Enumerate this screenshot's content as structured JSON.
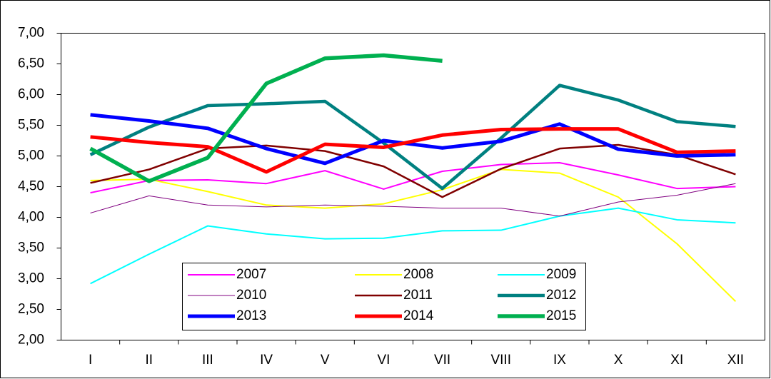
{
  "chart_data": {
    "type": "line",
    "categories": [
      "I",
      "II",
      "III",
      "IV",
      "V",
      "VI",
      "VII",
      "VIII",
      "IX",
      "X",
      "XI",
      "XII"
    ],
    "ylim": [
      2,
      7
    ],
    "yticks": [
      {
        "value": 2,
        "label": "2,00"
      },
      {
        "value": 2.5,
        "label": "2,50"
      },
      {
        "value": 3,
        "label": "3,00"
      },
      {
        "value": 3.5,
        "label": "3,50"
      },
      {
        "value": 4,
        "label": "4,00"
      },
      {
        "value": 4.5,
        "label": "4,50"
      },
      {
        "value": 5,
        "label": "5,00"
      },
      {
        "value": 5.5,
        "label": "5,50"
      },
      {
        "value": 6,
        "label": "6,00"
      },
      {
        "value": 6.5,
        "label": "6,50"
      },
      {
        "value": 7,
        "label": "7,00"
      }
    ],
    "grid": false,
    "legend": "bottom-left",
    "series": [
      {
        "name": "2007",
        "color": "#ff00ff",
        "line_width": 2,
        "values": [
          4.4,
          4.6,
          4.61,
          4.55,
          4.76,
          4.46,
          4.75,
          4.86,
          4.89,
          4.69,
          4.47,
          4.5
        ]
      },
      {
        "name": "2008",
        "color": "#ffff00",
        "line_width": 2,
        "values": [
          4.6,
          4.62,
          4.42,
          4.2,
          4.15,
          4.22,
          4.45,
          4.78,
          4.72,
          4.33,
          3.57,
          2.63
        ]
      },
      {
        "name": "2009",
        "color": "#00ffff",
        "line_width": 2,
        "values": [
          2.92,
          3.4,
          3.86,
          3.73,
          3.65,
          3.66,
          3.78,
          3.79,
          4.02,
          4.15,
          3.96,
          3.91
        ]
      },
      {
        "name": "2010",
        "color": "#800080",
        "line_width": 1,
        "values": [
          4.07,
          4.35,
          4.2,
          4.17,
          4.2,
          4.18,
          4.15,
          4.15,
          4.02,
          4.25,
          4.36,
          4.55
        ]
      },
      {
        "name": "2011",
        "color": "#800000",
        "line_width": 2.5,
        "values": [
          4.56,
          4.78,
          5.12,
          5.17,
          5.08,
          4.83,
          4.33,
          4.79,
          5.12,
          5.18,
          5.02,
          4.7
        ]
      },
      {
        "name": "2012",
        "color": "#008080",
        "line_width": 4.5,
        "values": [
          5.02,
          5.47,
          5.82,
          5.85,
          5.89,
          5.21,
          4.47,
          5.29,
          6.15,
          5.91,
          5.56,
          5.48
        ]
      },
      {
        "name": "2013",
        "color": "#0000ff",
        "line_width": 5,
        "values": [
          5.67,
          5.57,
          5.45,
          5.12,
          4.88,
          5.25,
          5.13,
          5.24,
          5.52,
          5.11,
          5.0,
          5.02
        ]
      },
      {
        "name": "2014",
        "color": "#ff0000",
        "line_width": 5,
        "values": [
          5.31,
          5.22,
          5.15,
          4.74,
          5.19,
          5.14,
          5.34,
          5.43,
          5.44,
          5.44,
          5.06,
          5.08
        ]
      },
      {
        "name": "2015",
        "color": "#00b050",
        "line_width": 5.5,
        "values": [
          5.12,
          4.59,
          4.97,
          6.18,
          6.59,
          6.64,
          6.55,
          null,
          null,
          null,
          null,
          null
        ]
      }
    ]
  }
}
